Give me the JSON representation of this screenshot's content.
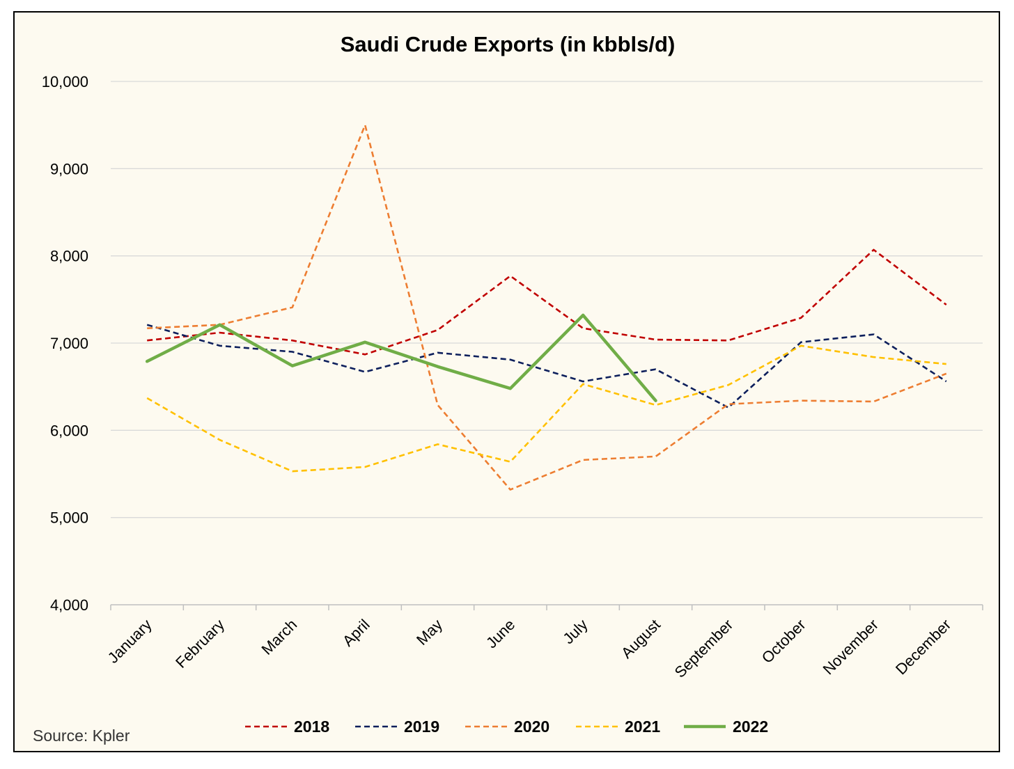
{
  "chart_data": {
    "type": "line",
    "title": "Saudi Crude Exports (in kbbls/d)",
    "xlabel": "",
    "ylabel": "",
    "ylim": [
      4000,
      10000
    ],
    "yticks": [
      4000,
      5000,
      6000,
      7000,
      8000,
      9000,
      10000
    ],
    "ytick_labels": [
      "4,000",
      "5,000",
      "6,000",
      "7,000",
      "8,000",
      "9,000",
      "10,000"
    ],
    "grid": "horizontal",
    "legend_position": "bottom",
    "categories": [
      "January",
      "February",
      "March",
      "April",
      "May",
      "June",
      "July",
      "August",
      "September",
      "October",
      "November",
      "December"
    ],
    "series": [
      {
        "name": "2018",
        "color": "#c00000",
        "style": "dashed",
        "values": [
          7030,
          7120,
          7030,
          6870,
          7150,
          7770,
          7170,
          7040,
          7030,
          7290,
          8070,
          7440
        ]
      },
      {
        "name": "2019",
        "color": "#0d1f5c",
        "style": "dashed",
        "values": [
          7210,
          6970,
          6900,
          6670,
          6890,
          6810,
          6560,
          6700,
          6260,
          7010,
          7100,
          6560
        ]
      },
      {
        "name": "2020",
        "color": "#ed7d31",
        "style": "dashed",
        "values": [
          7170,
          7210,
          7410,
          9500,
          6290,
          5320,
          5660,
          5700,
          6300,
          6340,
          6330,
          6650
        ]
      },
      {
        "name": "2021",
        "color": "#ffc000",
        "style": "dashed",
        "values": [
          6370,
          5890,
          5530,
          5580,
          5840,
          5640,
          6530,
          6290,
          6520,
          6970,
          6840,
          6760
        ]
      },
      {
        "name": "2022",
        "color": "#70ad47",
        "style": "solid",
        "values": [
          6790,
          7210,
          6740,
          7010,
          6730,
          6480,
          7320,
          6340,
          null,
          null,
          null,
          null
        ]
      }
    ]
  },
  "source_text": "Source: Kpler"
}
